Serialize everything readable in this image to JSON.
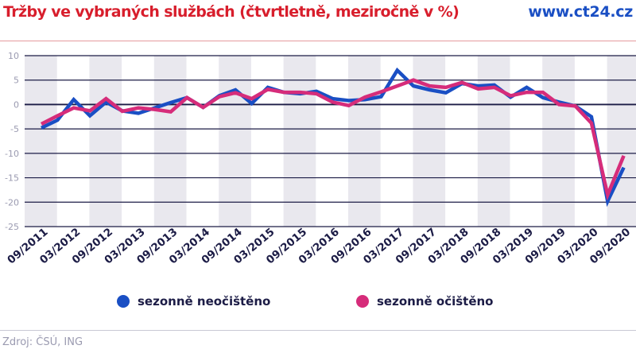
{
  "header": {
    "title": "Tržby ve vybraných službách (čtvrtletně, meziročně v %)",
    "brand": "www.ct24.cz"
  },
  "source": "Zdroj: ČSÚ, ING",
  "colors": {
    "title": "#d81e2c",
    "brand": "#1a4fc4",
    "series_1": "#1a4fc4",
    "series_2": "#d62c7a",
    "band": "#e9e8ee",
    "grid": "#1c1c46"
  },
  "chart_data": {
    "type": "line",
    "ylim": [
      -25,
      10
    ],
    "yticks": [
      10,
      5,
      0,
      -5,
      -10,
      -15,
      -20,
      -25
    ],
    "grid": true,
    "legend_placement": "bottom",
    "x": [
      "09/2011",
      "12/2011",
      "03/2012",
      "06/2012",
      "09/2012",
      "12/2012",
      "03/2013",
      "06/2013",
      "09/2013",
      "12/2013",
      "03/2014",
      "06/2014",
      "09/2014",
      "12/2014",
      "03/2015",
      "06/2015",
      "09/2015",
      "12/2015",
      "03/2016",
      "06/2016",
      "09/2016",
      "12/2016",
      "03/2017",
      "06/2017",
      "09/2017",
      "12/2017",
      "03/2018",
      "06/2018",
      "09/2018",
      "12/2018",
      "03/2019",
      "06/2019",
      "09/2019",
      "12/2019",
      "03/2020",
      "06/2020",
      "09/2020"
    ],
    "xtick_labels": [
      "09/2011",
      "03/2012",
      "09/2012",
      "03/2013",
      "09/2013",
      "03/2014",
      "09/2014",
      "03/2015",
      "09/2015",
      "03/2016",
      "09/2016",
      "03/2017",
      "09/2017",
      "03/2018",
      "09/2018",
      "03/2019",
      "09/2019",
      "03/2020",
      "09/2020"
    ],
    "series": [
      {
        "name": "sezonně neočištěno",
        "color": "#1a4fc4",
        "values": [
          -4.8,
          -3.2,
          1.0,
          -2.3,
          0.5,
          -1.3,
          -1.8,
          -0.7,
          0.4,
          1.4,
          -0.6,
          1.8,
          3.0,
          0.2,
          3.5,
          2.5,
          2.2,
          2.7,
          1.2,
          0.8,
          1.0,
          1.6,
          7.0,
          3.8,
          3.0,
          2.4,
          4.3,
          3.8,
          4.0,
          1.5,
          3.5,
          1.4,
          0.5,
          -0.3,
          -2.5,
          -19.8,
          -12.9
        ]
      },
      {
        "name": "sezonně očištěno",
        "color": "#d62c7a",
        "values": [
          -4.0,
          -2.3,
          -0.7,
          -1.3,
          1.2,
          -1.4,
          -0.7,
          -1.0,
          -1.5,
          1.4,
          -0.6,
          1.6,
          2.4,
          1.2,
          3.1,
          2.5,
          2.5,
          2.2,
          0.5,
          -0.2,
          1.5,
          2.6,
          3.8,
          5.0,
          3.8,
          3.5,
          4.5,
          3.2,
          3.5,
          1.8,
          2.5,
          2.5,
          0.0,
          -0.3,
          -3.8,
          -18.5,
          -10.5
        ]
      }
    ]
  }
}
